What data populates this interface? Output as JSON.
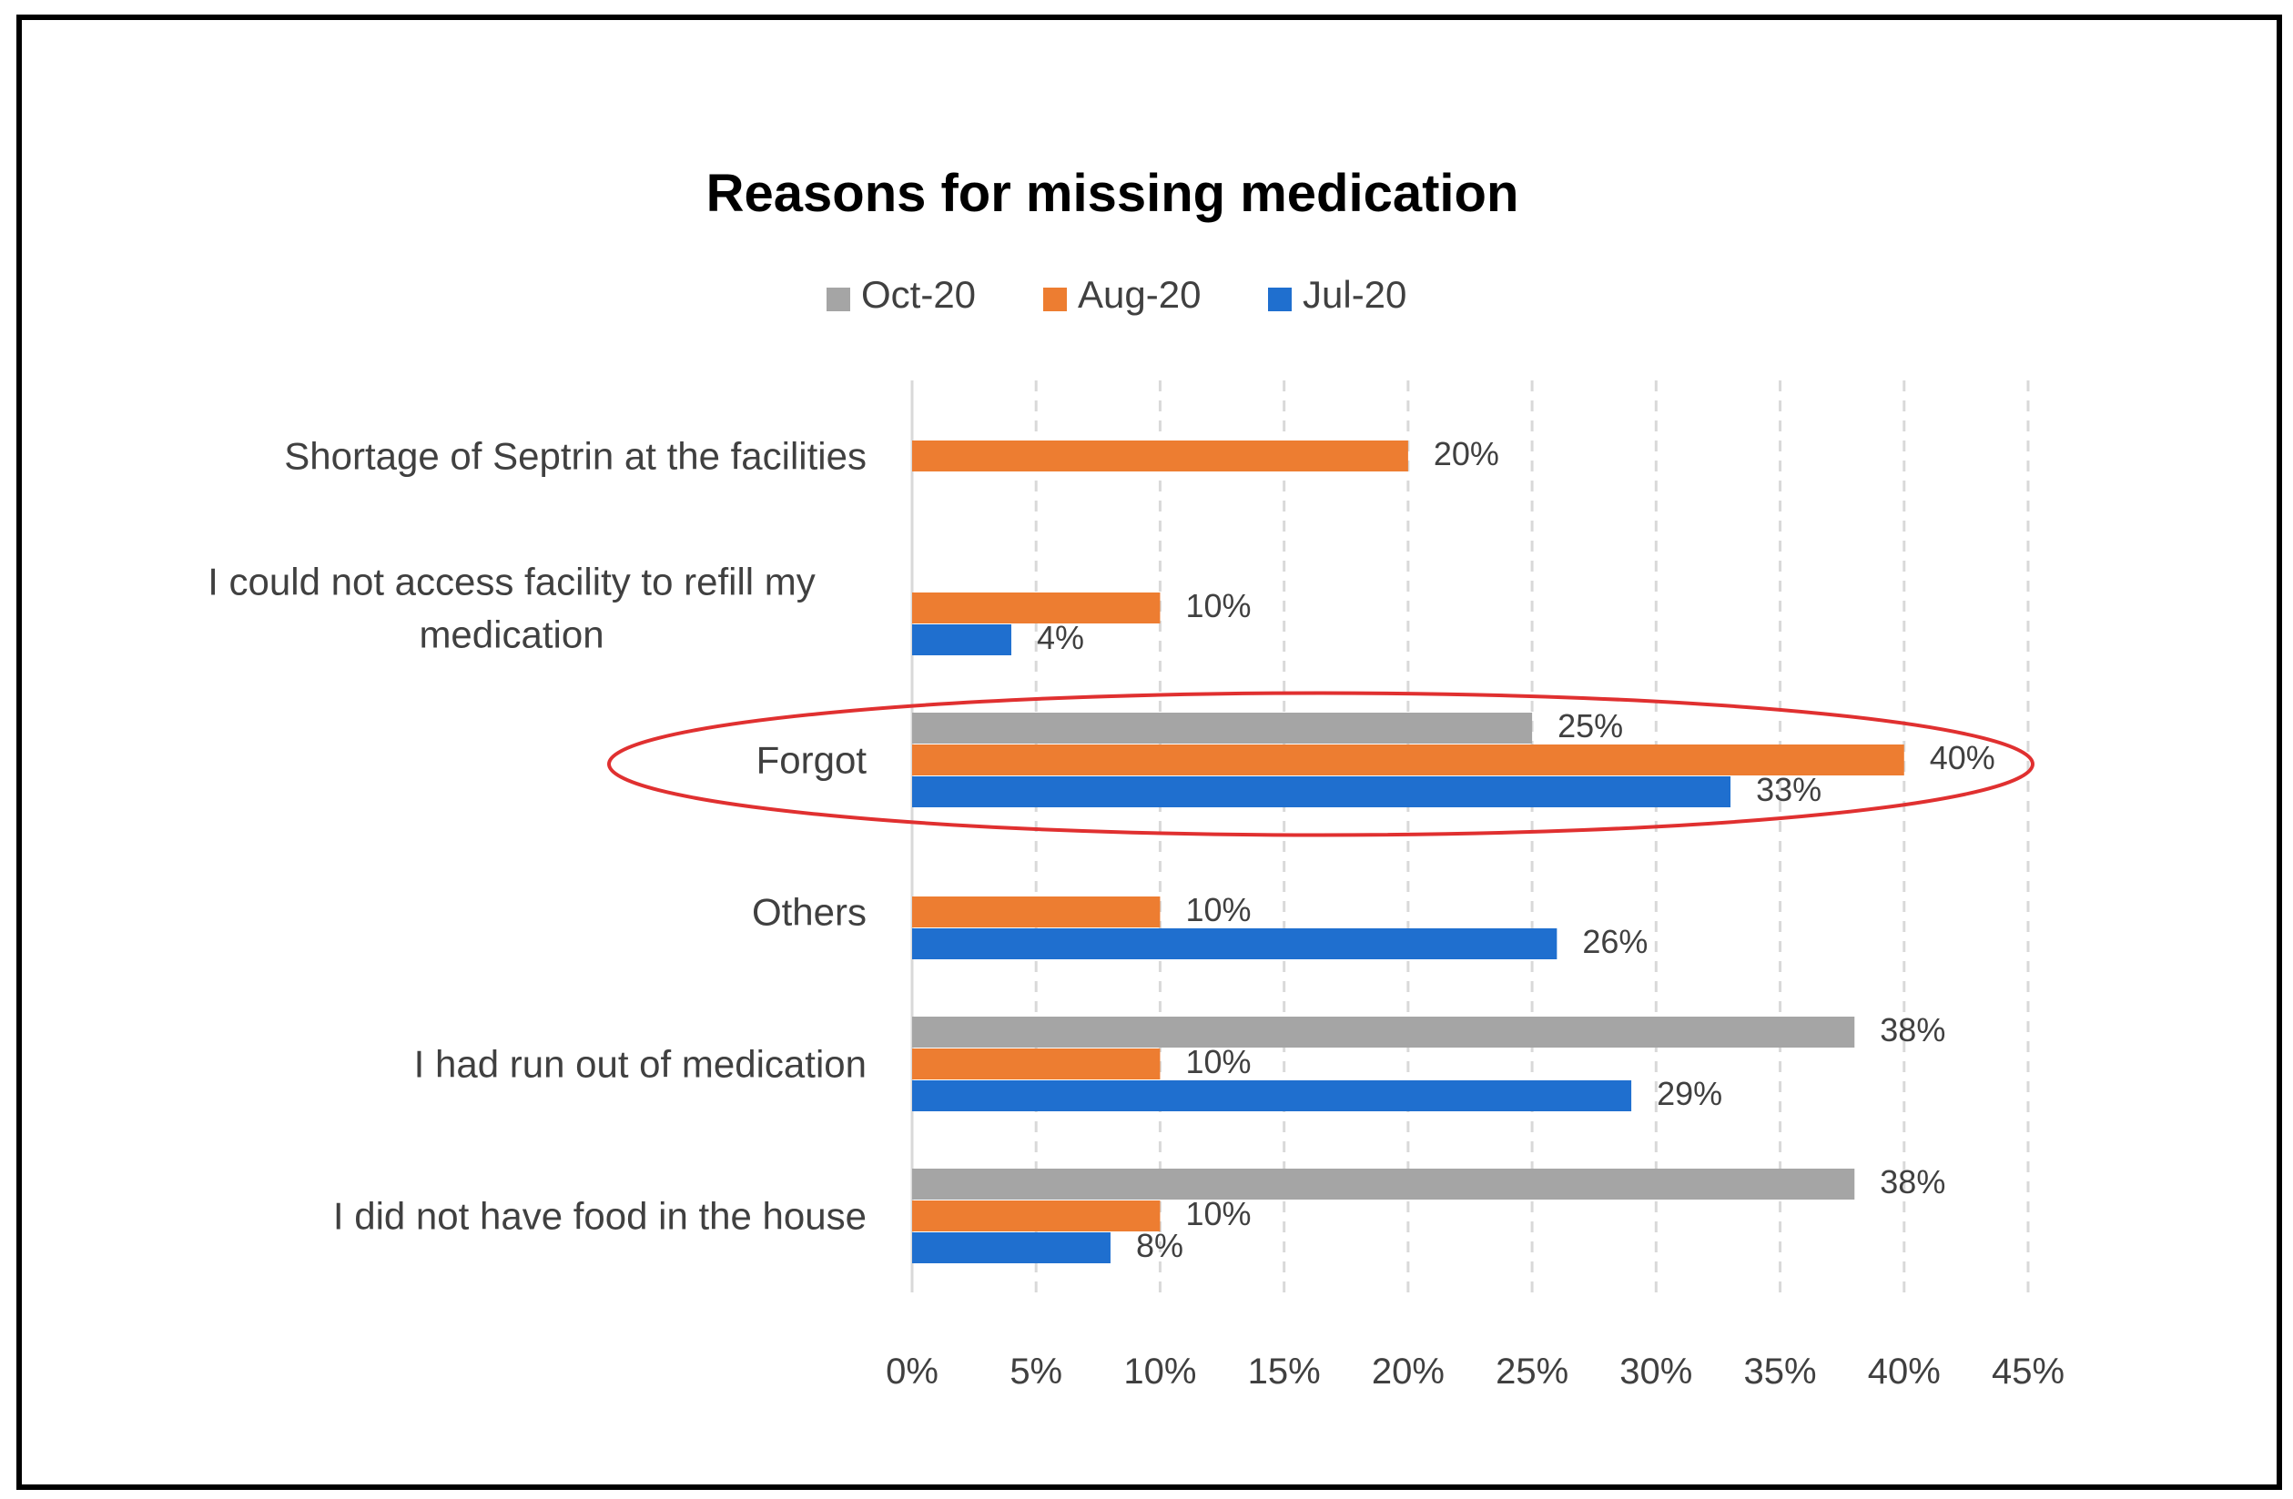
{
  "chart_data": {
    "type": "bar",
    "orientation": "horizontal",
    "title": "Reasons for missing medication",
    "xlabel": "",
    "ylabel": "",
    "xlim": [
      0,
      45
    ],
    "x_ticks": [
      "0%",
      "5%",
      "10%",
      "15%",
      "20%",
      "25%",
      "30%",
      "35%",
      "40%",
      "45%"
    ],
    "grid": "vertical dashed",
    "legend_position": "top",
    "value_format": "percent",
    "categories": [
      [
        "Shortage of Septrin at the facilities"
      ],
      [
        "I could not access facility to refill my",
        "medication"
      ],
      [
        "Forgot"
      ],
      [
        "Others"
      ],
      [
        "I had run out of medication"
      ],
      [
        "I did not have food in the house"
      ]
    ],
    "series": [
      {
        "name": "Oct-20",
        "color": "#a5a5a5",
        "values": [
          null,
          null,
          25,
          null,
          38,
          38
        ]
      },
      {
        "name": "Aug-20",
        "color": "#ed7d31",
        "values": [
          20,
          10,
          40,
          10,
          10,
          10
        ]
      },
      {
        "name": "Jul-20",
        "color": "#4472c4",
        "bar_color": "#1f6fcf",
        "values": [
          null,
          4,
          33,
          26,
          29,
          8
        ]
      }
    ],
    "highlight": {
      "category_index": 2,
      "shape": "ellipse",
      "color": "#e03030"
    }
  }
}
